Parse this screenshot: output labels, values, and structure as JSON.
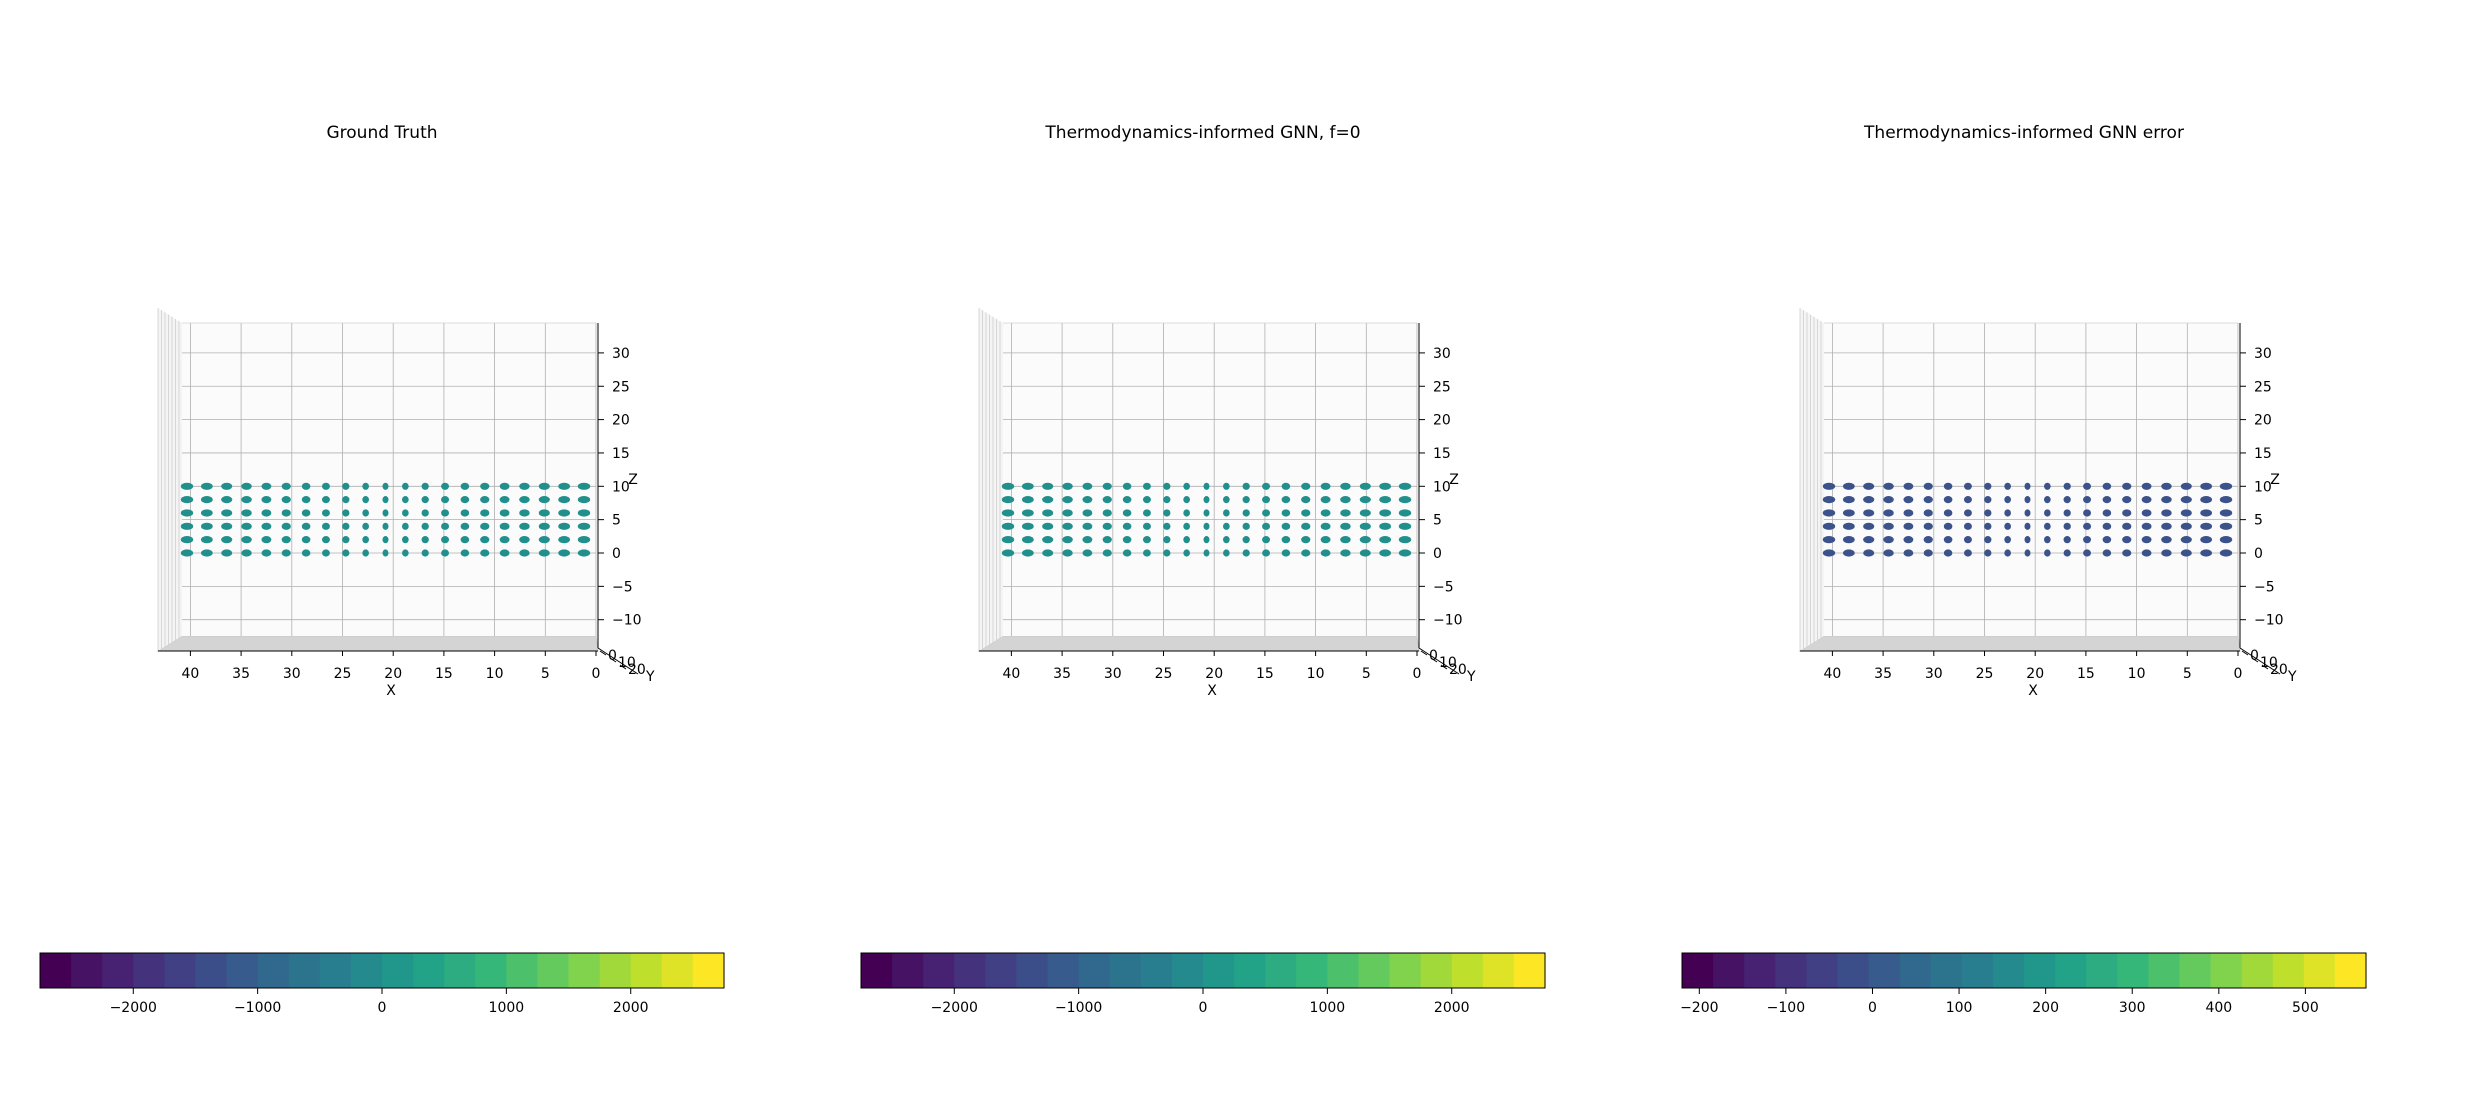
{
  "chart_data": [
    {
      "type": "scatter",
      "title": "Ground Truth",
      "xlabel": "X",
      "ylabel": "Y",
      "zlabel": "Z",
      "x_ticks": [
        "40",
        "35",
        "30",
        "25",
        "20",
        "15",
        "10",
        "5",
        "0"
      ],
      "z_ticks": [
        "30",
        "25",
        "20",
        "15",
        "10",
        "5",
        "0",
        "−5",
        "−10"
      ],
      "y_ticks": [
        "0",
        "10",
        "20"
      ],
      "xlim": [
        0,
        43
      ],
      "zlim": [
        -14,
        32
      ],
      "view": "front (elevation 0)",
      "grid": true,
      "points": {
        "x": [
          0,
          2,
          4,
          6,
          8,
          10,
          12,
          14,
          16,
          18,
          20,
          22,
          24,
          26,
          28,
          30,
          32,
          34,
          36,
          38,
          40
        ],
        "z": [
          0,
          2,
          4,
          6,
          8,
          10
        ],
        "color_value": 0,
        "marker_color": "#21908d"
      },
      "colorbar": {
        "orientation": "horizontal",
        "colormap": "viridis",
        "range": [
          -2750,
          2750
        ],
        "levels": 22,
        "tick_values": [
          -2000,
          -1000,
          0,
          1000,
          2000
        ],
        "tick_labels": [
          "−2000",
          "−1000",
          "0",
          "1000",
          "2000"
        ]
      }
    },
    {
      "type": "scatter",
      "title": "Thermodynamics-informed GNN, f=0",
      "xlabel": "X",
      "ylabel": "Y",
      "zlabel": "Z",
      "x_ticks": [
        "40",
        "35",
        "30",
        "25",
        "20",
        "15",
        "10",
        "5",
        "0"
      ],
      "z_ticks": [
        "30",
        "25",
        "20",
        "15",
        "10",
        "5",
        "0",
        "−5",
        "−10"
      ],
      "y_ticks": [
        "0",
        "10",
        "20"
      ],
      "xlim": [
        0,
        43
      ],
      "zlim": [
        -14,
        32
      ],
      "view": "front (elevation 0)",
      "grid": true,
      "points": {
        "x": [
          0,
          2,
          4,
          6,
          8,
          10,
          12,
          14,
          16,
          18,
          20,
          22,
          24,
          26,
          28,
          30,
          32,
          34,
          36,
          38,
          40
        ],
        "z": [
          0,
          2,
          4,
          6,
          8,
          10
        ],
        "color_value": 0,
        "marker_color": "#21908d"
      },
      "colorbar": {
        "orientation": "horizontal",
        "colormap": "viridis",
        "range": [
          -2750,
          2750
        ],
        "levels": 22,
        "tick_values": [
          -2000,
          -1000,
          0,
          1000,
          2000
        ],
        "tick_labels": [
          "−2000",
          "−1000",
          "0",
          "1000",
          "2000"
        ]
      }
    },
    {
      "type": "scatter",
      "title": "Thermodynamics-informed GNN error",
      "xlabel": "X",
      "ylabel": "Y",
      "zlabel": "Z",
      "x_ticks": [
        "40",
        "35",
        "30",
        "25",
        "20",
        "15",
        "10",
        "5",
        "0"
      ],
      "z_ticks": [
        "30",
        "25",
        "20",
        "15",
        "10",
        "5",
        "0",
        "−5",
        "−10"
      ],
      "y_ticks": [
        "0",
        "10",
        "20"
      ],
      "xlim": [
        0,
        43
      ],
      "zlim": [
        -14,
        32
      ],
      "view": "front (elevation 0)",
      "grid": true,
      "points": {
        "x": [
          0,
          2,
          4,
          6,
          8,
          10,
          12,
          14,
          16,
          18,
          20,
          22,
          24,
          26,
          28,
          30,
          32,
          34,
          36,
          38,
          40
        ],
        "z": [
          0,
          2,
          4,
          6,
          8,
          10
        ],
        "color_value": 0,
        "marker_color": "#3b528b"
      },
      "colorbar": {
        "orientation": "horizontal",
        "colormap": "viridis",
        "range": [
          -220,
          570
        ],
        "levels": 22,
        "tick_values": [
          -200,
          -100,
          0,
          100,
          200,
          300,
          400,
          500
        ],
        "tick_labels": [
          "−200",
          "−100",
          "0",
          "100",
          "200",
          "300",
          "400",
          "500"
        ]
      }
    }
  ]
}
